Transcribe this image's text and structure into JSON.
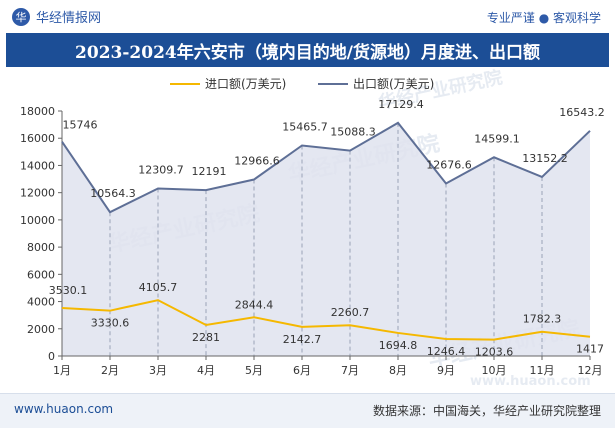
{
  "header": {
    "brand_name": "华经情报网",
    "brand_mark": "华",
    "slogan": "专业严谨 ● 客观科学"
  },
  "watermark": {
    "text": "华经产业研究院",
    "url": "www.huaon.com"
  },
  "footer": {
    "site": "www.huaon.com",
    "source": "数据来源：中国海关，华经产业研究院整理"
  },
  "colors": {
    "title_bg": "#1c4e96",
    "import_line": "#f5b800",
    "export_line": "#5e6f96",
    "export_area": "#dfe3ee"
  },
  "chart_data": {
    "type": "line",
    "title": "2023-2024年六安市（境内目的地/货源地）月度进、出口额",
    "categories": [
      "1月",
      "2月",
      "3月",
      "4月",
      "5月",
      "6月",
      "7月",
      "8月",
      "9月",
      "10月",
      "11月",
      "12月"
    ],
    "ylim": [
      0,
      18000
    ],
    "yticks": [
      0,
      2000,
      4000,
      6000,
      8000,
      10000,
      12000,
      14000,
      16000,
      18000
    ],
    "grid": false,
    "legend_position": "top-center",
    "series": [
      {
        "name": "进口额(万美元)",
        "values": [
          3530.1,
          3330.6,
          4105.7,
          2281,
          2844.4,
          2142.7,
          2260.7,
          1694.8,
          1246.4,
          1203.6,
          1782.3,
          1417
        ],
        "labels": [
          "3530.1",
          "3330.6",
          "4105.7",
          "2281",
          "2844.4",
          "2142.7",
          "2260.7",
          "1694.8",
          "1246.4",
          "1203.6",
          "1782.3",
          "1417"
        ]
      },
      {
        "name": "出口额(万美元)",
        "values": [
          15746,
          10564.3,
          12309.7,
          12191,
          12966.6,
          15465.7,
          15088.3,
          17129.4,
          12676.6,
          14599.1,
          13152.2,
          16543.2
        ],
        "labels": [
          "15746",
          "10564.3",
          "12309.7",
          "12191",
          "12966.6",
          "15465.7",
          "15088.3",
          "17129.4",
          "12676.6",
          "14599.1",
          "13152.2",
          "16543.2"
        ]
      }
    ]
  }
}
